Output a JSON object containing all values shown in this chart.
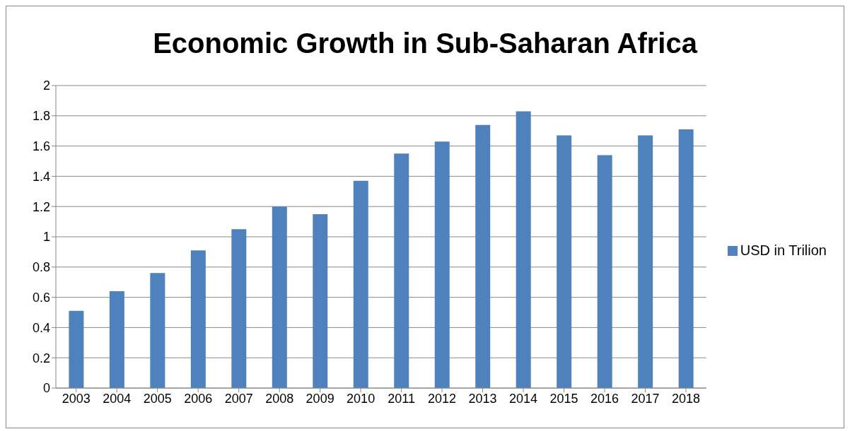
{
  "chart_data": {
    "type": "bar",
    "title": "Economic Growth in Sub-Saharan Africa",
    "categories": [
      "2003",
      "2004",
      "2005",
      "2006",
      "2007",
      "2008",
      "2009",
      "2010",
      "2011",
      "2012",
      "2013",
      "2014",
      "2015",
      "2016",
      "2017",
      "2018"
    ],
    "series": [
      {
        "name": "USD in Trilion",
        "color": "#4f81bd",
        "values": [
          0.51,
          0.64,
          0.76,
          0.91,
          1.05,
          1.2,
          1.15,
          1.37,
          1.55,
          1.63,
          1.74,
          1.83,
          1.67,
          1.54,
          1.67,
          1.71
        ]
      }
    ],
    "ylim": [
      0,
      2
    ],
    "yticks": [
      0,
      0.2,
      0.4,
      0.6,
      0.8,
      1,
      1.2,
      1.4,
      1.6,
      1.8,
      2
    ],
    "grid": "y",
    "legend": "right"
  }
}
